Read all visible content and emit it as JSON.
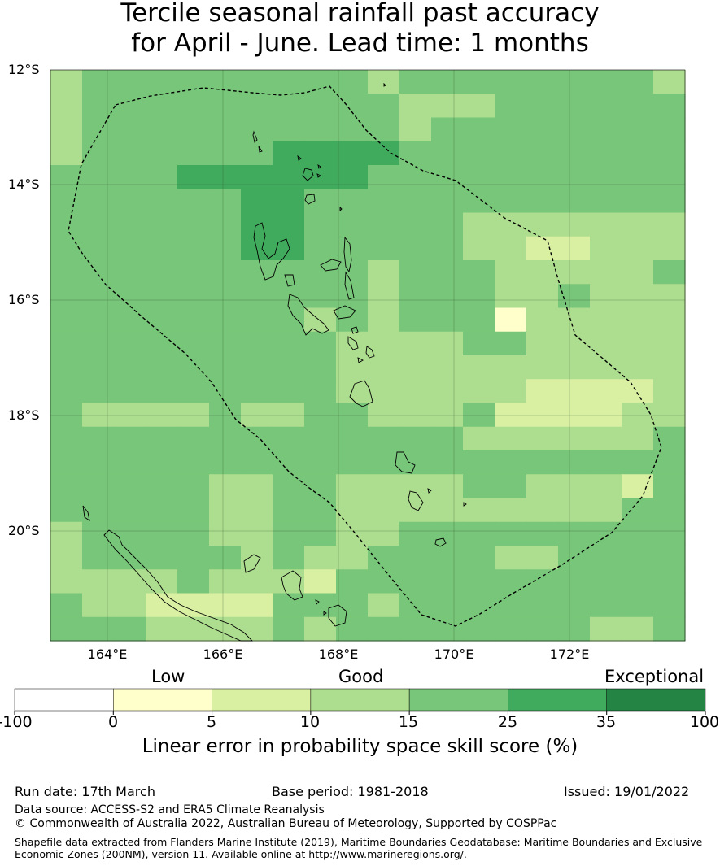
{
  "title_line1": "Tercile seasonal rainfall past accuracy",
  "title_line2": "for April - June. Lead time: 1 months",
  "lat_labels": [
    "12°S",
    "14°S",
    "16°S",
    "18°S",
    "20°S"
  ],
  "lon_labels": [
    "164°E",
    "166°E",
    "168°E",
    "170°E",
    "172°E"
  ],
  "categories": [
    "Low",
    "Good",
    "Exceptional"
  ],
  "colorbar": {
    "ticks": [
      "-100",
      "0",
      "5",
      "10",
      "15",
      "25",
      "35",
      "100"
    ],
    "colors": [
      "#ffffff",
      "#ffffcc",
      "#d9f0a3",
      "#addd8e",
      "#78c679",
      "#41ab5d",
      "#238443"
    ],
    "label": "Linear error in probability space skill score (%)"
  },
  "map_grid": {
    "lon_start": 163.0,
    "lat_start": -12.0,
    "cell_deg": 0.833,
    "levels_legend": "1=0-5, 2=5-10, 3=10-15, 4=15-25, 5=25-35",
    "rows": [
      "34444444443444444443",
      "34444444444333444444",
      "34444444444344444444",
      "34444445555444444444",
      "44445555554444444444",
      "44444455444444444444",
      "44444455444443333333",
      "44444455444443322333",
      "44444444443444333334",
      "44444444443444334333",
      "44444444343444133333",
      "44444444433334433333",
      "44444444433333333333",
      "44444444433333322223",
      "43333433443334222233",
      "44444444444443333334",
      "44444444444444444444",
      "44444334433334433324",
      "44444334433333333344",
      "34444334433444444444",
      "34444434334444334444",
      "33334333244444444444",
      "43322224443444444444",
      "44433334344444444334"
    ]
  },
  "footer": {
    "run_date": "Run date: 17th March",
    "base_period": "Base period: 1981-2018",
    "issued": "Issued: 19/01/2022",
    "data_source": "Data source: ACCESS-S2 and ERA5 Climate Reanalysis",
    "copyright": "© Commonwealth of Australia 2022, Australian Bureau of Meteorology, Supported by COSPPac",
    "shapefile_line1": "Shapefile data extracted from Flanders Marine Institute (2019), Maritime Boundaries Geodatabase: Maritime Boundaries and Exclusive",
    "shapefile_line2": "Economic Zones (200NM), version 11. Available online at http://www.marineregions.org/."
  }
}
